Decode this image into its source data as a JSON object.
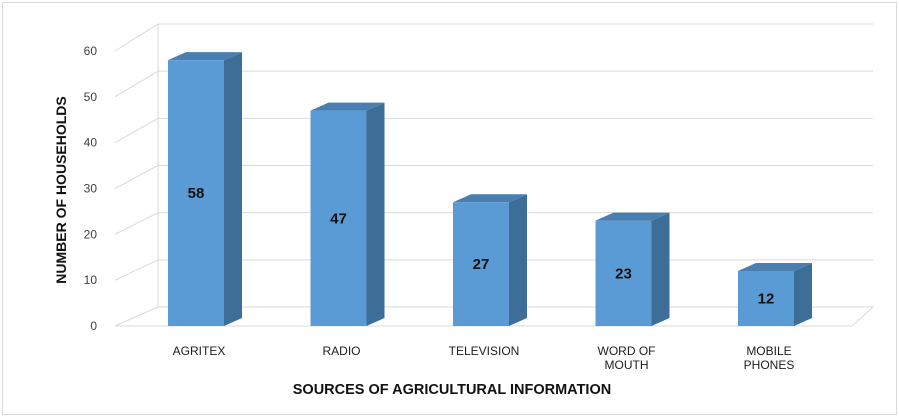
{
  "chart_data": {
    "type": "bar",
    "style": "3d-column",
    "categories": [
      "AGRITEX",
      "RADIO",
      "TELEVISION",
      "WORD OF MOUTH",
      "MOBILE PHONES"
    ],
    "category_label_lines": [
      [
        "AGRITEX"
      ],
      [
        "RADIO"
      ],
      [
        "TELEVISION"
      ],
      [
        "WORD OF",
        "MOUTH"
      ],
      [
        "MOBILE",
        "PHONES"
      ]
    ],
    "values": [
      58,
      47,
      27,
      23,
      12
    ],
    "xlabel": "SOURCES OF AGRICULTURAL INFORMATION",
    "ylabel": "NUMBER OF HOUSEHOLDS",
    "ylim": [
      0,
      60
    ],
    "yticks": [
      0,
      10,
      20,
      30,
      40,
      50,
      60
    ],
    "grid": true,
    "legend": "none",
    "data_labels": true,
    "colors": {
      "bar_front": "#5b9bd5",
      "bar_side": "#3c6e98",
      "bar_top": "#497fb0",
      "grid": "#d9d9d9"
    }
  }
}
